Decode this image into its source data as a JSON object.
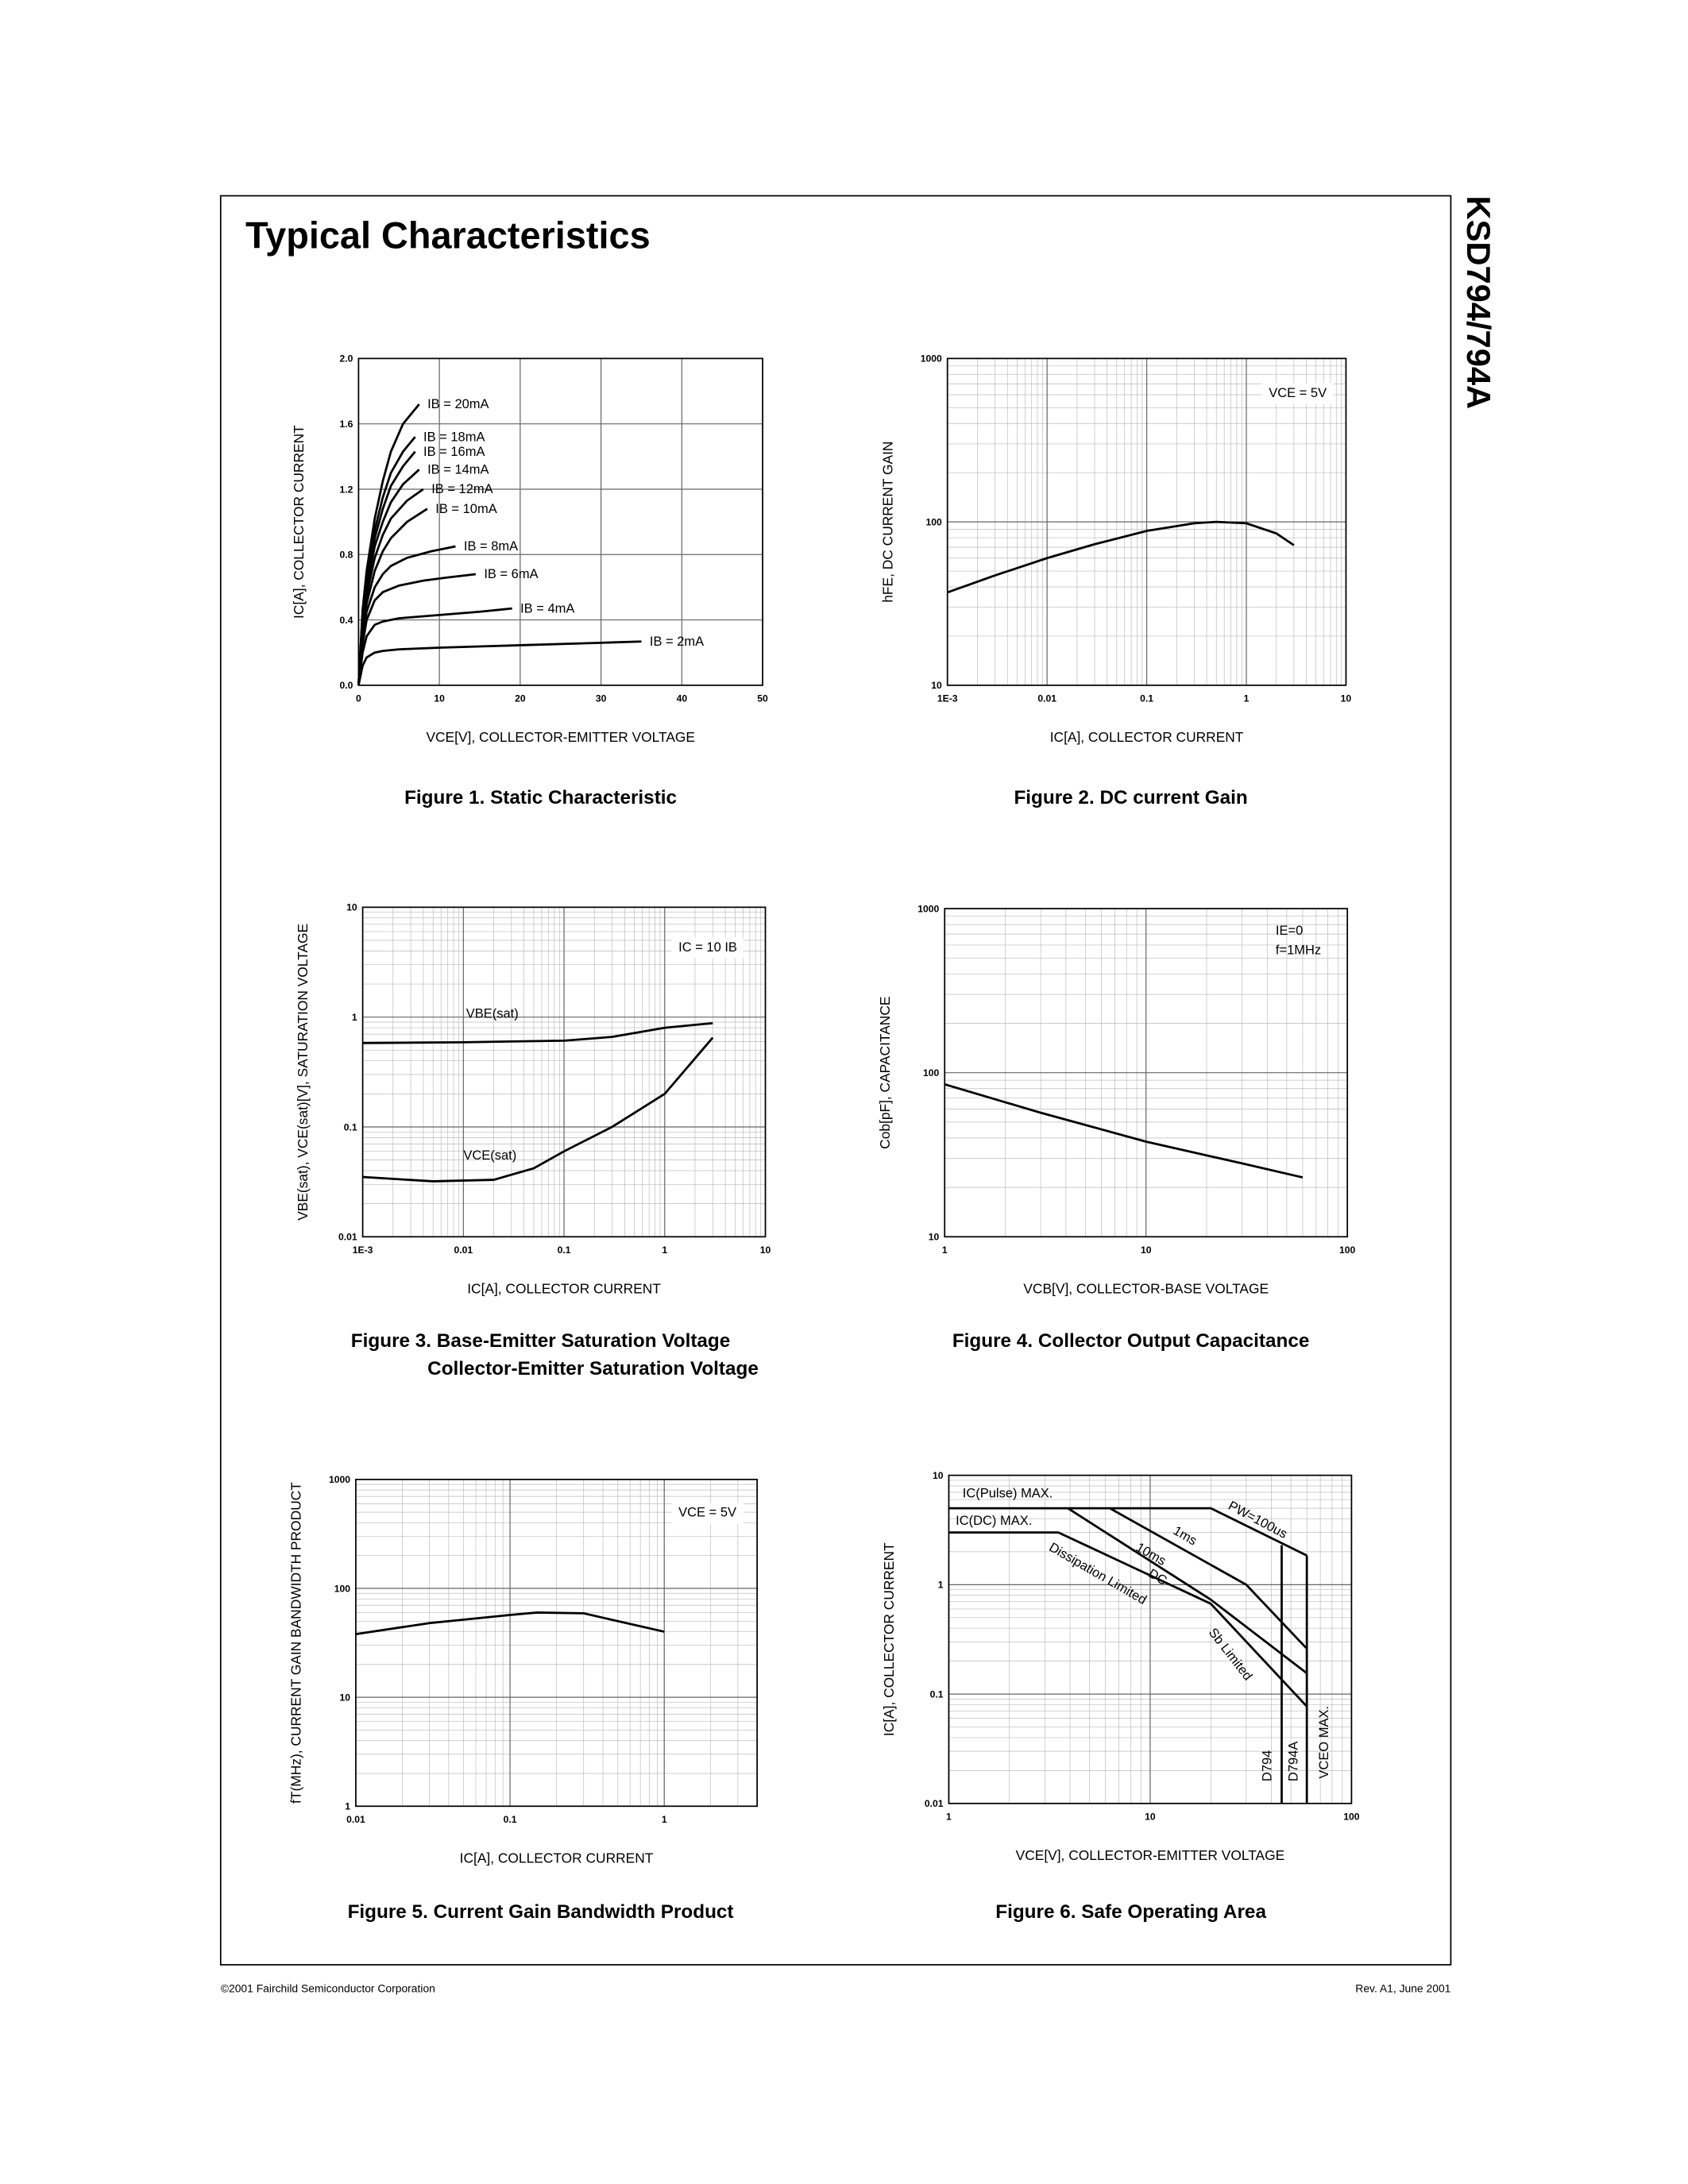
{
  "header": {
    "title": "Typical Characteristics",
    "side_label": "KSD794/794A"
  },
  "footer": {
    "left": "©2001 Fairchild Semiconductor Corporation",
    "right": "Rev. A1, June 2001"
  },
  "chart_data": [
    {
      "type": "line",
      "title": "Figure 1. Static Characteristic",
      "x_label": "VCE[V], COLLECTOR-EMITTER VOLTAGE",
      "y_label": "IC[A], COLLECTOR CURRENT",
      "xlim": [
        0,
        50
      ],
      "ylim": [
        0,
        2
      ],
      "xlog": false,
      "ylog": false,
      "grid": true,
      "minor_grid": false,
      "xticks": [
        0,
        10,
        20,
        30,
        40,
        50
      ],
      "yticks": [
        {
          "value": 0,
          "label": "0.0"
        },
        0.4,
        0.8,
        1.2,
        1.6,
        {
          "value": 2,
          "label": "2.0"
        }
      ],
      "series": [
        {
          "name": "IB = 20mA",
          "color": "#000000",
          "x": [
            0,
            0.5,
            1,
            2,
            3,
            4,
            5.5,
            7.5
          ],
          "values": [
            0,
            0.46,
            0.7,
            1.02,
            1.25,
            1.43,
            1.6,
            1.72
          ]
        },
        {
          "name": "IB = 18mA",
          "color": "#000000",
          "x": [
            0,
            0.5,
            1,
            2,
            3,
            4,
            5.5,
            7
          ],
          "values": [
            0,
            0.44,
            0.66,
            0.95,
            1.15,
            1.3,
            1.43,
            1.52
          ]
        },
        {
          "name": "IB = 16mA",
          "color": "#000000",
          "x": [
            0,
            0.5,
            1,
            2,
            3,
            4,
            5.5,
            7
          ],
          "values": [
            0,
            0.42,
            0.63,
            0.9,
            1.08,
            1.22,
            1.34,
            1.43
          ]
        },
        {
          "name": "IB = 14mA",
          "color": "#000000",
          "x": [
            0,
            0.5,
            1,
            2,
            3,
            4,
            5.5,
            7.5
          ],
          "values": [
            0,
            0.4,
            0.6,
            0.85,
            1.0,
            1.12,
            1.23,
            1.32
          ]
        },
        {
          "name": "IB = 12mA",
          "color": "#000000",
          "x": [
            0,
            0.5,
            1,
            2,
            3,
            4,
            6,
            8
          ],
          "values": [
            0,
            0.38,
            0.55,
            0.78,
            0.92,
            1.02,
            1.13,
            1.2
          ]
        },
        {
          "name": "IB = 10mA",
          "color": "#000000",
          "x": [
            0,
            0.5,
            1,
            2,
            3,
            4,
            6,
            8.5
          ],
          "values": [
            0,
            0.35,
            0.5,
            0.7,
            0.82,
            0.9,
            1.0,
            1.08
          ]
        },
        {
          "name": "IB = 8mA",
          "color": "#000000",
          "x": [
            0,
            0.5,
            1,
            2,
            3,
            4,
            6,
            9,
            12
          ],
          "values": [
            0,
            0.3,
            0.45,
            0.6,
            0.68,
            0.73,
            0.78,
            0.82,
            0.85
          ]
        },
        {
          "name": "IB = 6mA",
          "color": "#000000",
          "x": [
            0,
            0.5,
            1,
            2,
            3,
            5,
            8,
            11,
            14.5
          ],
          "values": [
            0,
            0.25,
            0.4,
            0.52,
            0.57,
            0.61,
            0.64,
            0.66,
            0.68
          ]
        },
        {
          "name": "IB = 4mA",
          "color": "#000000",
          "x": [
            0,
            0.5,
            1,
            2,
            3,
            5,
            10,
            15,
            19
          ],
          "values": [
            0,
            0.2,
            0.3,
            0.37,
            0.39,
            0.41,
            0.43,
            0.45,
            0.47
          ]
        },
        {
          "name": "IB = 2mA",
          "color": "#000000",
          "x": [
            0,
            0.5,
            1,
            2,
            3,
            5,
            10,
            20,
            30,
            35
          ],
          "values": [
            0,
            0.12,
            0.17,
            0.2,
            0.21,
            0.22,
            0.23,
            0.245,
            0.26,
            0.268
          ]
        }
      ]
    },
    {
      "type": "line",
      "title": "Figure 2. DC current Gain",
      "x_label": "IC[A], COLLECTOR CURRENT",
      "y_label": "hFE, DC CURRENT GAIN",
      "xlim": [
        0.001,
        10
      ],
      "ylim": [
        10,
        1000
      ],
      "xlog": true,
      "ylog": true,
      "grid": true,
      "minor_grid": true,
      "xticks": [
        {
          "value": 0.001,
          "label": "1E-3"
        },
        0.01,
        0.1,
        1,
        10
      ],
      "yticks": [
        10,
        100,
        1000
      ],
      "annotations": [
        "VCE = 5V"
      ],
      "series": [
        {
          "color": "#000000",
          "x": [
            0.001,
            0.003,
            0.01,
            0.03,
            0.1,
            0.3,
            0.5,
            1,
            2,
            3
          ],
          "values": [
            37,
            47,
            60,
            73,
            88,
            98,
            100,
            98,
            85,
            72
          ]
        }
      ]
    },
    {
      "type": "line",
      "title": "Figure 3. Base-Emitter Saturation Voltage",
      "subtitle": "Collector-Emitter Saturation Voltage",
      "x_label": "IC[A], COLLECTOR CURRENT",
      "y_label": "VBE(sat), VCE(sat)[V], SATURATION VOLTAGE",
      "xlim": [
        0.001,
        10
      ],
      "ylim": [
        0.01,
        10
      ],
      "xlog": true,
      "ylog": true,
      "grid": true,
      "minor_grid": true,
      "xticks": [
        {
          "value": 0.001,
          "label": "1E-3"
        },
        0.01,
        0.1,
        1,
        10
      ],
      "yticks": [
        0.01,
        0.1,
        1,
        10
      ],
      "annotations": [
        "IC = 10 IB"
      ],
      "series": [
        {
          "name": "VBE(sat)",
          "color": "#000000",
          "x": [
            0.001,
            0.01,
            0.1,
            0.3,
            1,
            3
          ],
          "values": [
            0.58,
            0.59,
            0.61,
            0.66,
            0.8,
            0.88
          ]
        },
        {
          "name": "VCE(sat)",
          "color": "#000000",
          "x": [
            0.001,
            0.005,
            0.02,
            0.05,
            0.1,
            0.3,
            1,
            3
          ],
          "values": [
            0.035,
            0.032,
            0.033,
            0.042,
            0.06,
            0.1,
            0.2,
            0.65
          ]
        }
      ]
    },
    {
      "type": "line",
      "title": "Figure 4. Collector Output Capacitance",
      "x_label": "VCB[V], COLLECTOR-BASE VOLTAGE",
      "y_label": "Cob[pF], CAPACITANCE",
      "xlim": [
        1,
        100
      ],
      "ylim": [
        10,
        1000
      ],
      "xlog": true,
      "ylog": true,
      "grid": true,
      "minor_grid": true,
      "xticks": [
        1,
        10,
        100
      ],
      "yticks": [
        10,
        100,
        1000
      ],
      "annotations": [
        "IE=0",
        "f=1MHz"
      ],
      "series": [
        {
          "color": "#000000",
          "x": [
            1,
            3,
            10,
            30,
            60
          ],
          "values": [
            85,
            57,
            38,
            28,
            23
          ]
        }
      ]
    },
    {
      "type": "line",
      "title": "Figure 5. Current Gain Bandwidth Product",
      "x_label": "IC[A], COLLECTOR CURRENT",
      "y_label": "fT(MHz), CURRENT GAIN BANDWIDTH PRODUCT",
      "xlim": [
        0.01,
        4
      ],
      "ylim": [
        1,
        1000
      ],
      "xlog": true,
      "ylog": true,
      "grid": true,
      "minor_grid": true,
      "xticks": [
        0.01,
        0.1,
        1
      ],
      "yticks": [
        1,
        10,
        100,
        1000
      ],
      "annotations": [
        "VCE = 5V"
      ],
      "series": [
        {
          "color": "#000000",
          "x": [
            0.01,
            0.03,
            0.1,
            0.15,
            0.3,
            1
          ],
          "values": [
            38,
            48,
            57,
            60,
            59,
            40
          ]
        }
      ]
    },
    {
      "type": "line",
      "title": "Figure 6. Safe Operating Area",
      "x_label": "VCE[V], COLLECTOR-EMITTER VOLTAGE",
      "y_label": "IC[A], COLLECTOR CURRENT",
      "xlim": [
        1,
        100
      ],
      "ylim": [
        0.01,
        10
      ],
      "xlog": true,
      "ylog": true,
      "grid": true,
      "minor_grid": true,
      "xticks": [
        1,
        10,
        100
      ],
      "yticks": [
        0.01,
        0.1,
        1,
        10
      ],
      "annotations": [
        "IC(Pulse) MAX.",
        "IC(DC) MAX.",
        "Dissipation Limited",
        "Sb Limited",
        "D794",
        "D794A",
        "VCEO MAX."
      ],
      "series": [
        {
          "name": "PW=100us",
          "color": "#000000",
          "x": [
            1,
            20,
            60
          ],
          "values": [
            5,
            5,
            1.85
          ]
        },
        {
          "name": "1ms",
          "color": "#000000",
          "x": [
            6.3,
            30,
            60
          ],
          "values": [
            5,
            1,
            0.26
          ]
        },
        {
          "name": "10ms",
          "color": "#000000",
          "x": [
            3.9,
            20,
            60
          ],
          "values": [
            5,
            0.73,
            0.155
          ]
        },
        {
          "name": "DC",
          "color": "#000000",
          "x": [
            1,
            3.5,
            20,
            60
          ],
          "values": [
            3,
            3,
            0.67,
            0.077
          ]
        },
        {
          "color": "#000000",
          "x": [
            45,
            45
          ],
          "values": [
            2.3,
            0.01
          ]
        },
        {
          "color": "#000000",
          "x": [
            60,
            60
          ],
          "values": [
            1.85,
            0.01
          ]
        }
      ]
    }
  ]
}
